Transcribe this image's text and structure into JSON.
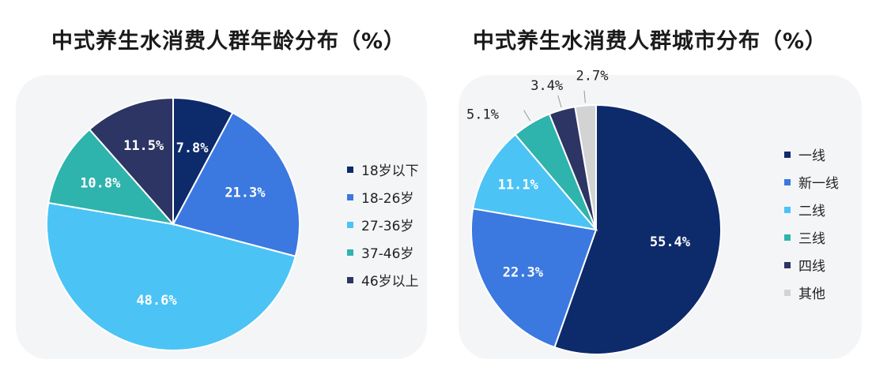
{
  "charts": [
    {
      "title": "中式养生水消费人群年龄分布（%）",
      "legend": [
        "18岁以下",
        "18-26岁",
        "27-36岁",
        "37-46岁",
        "46岁以上"
      ],
      "slice_labels": [
        "7.8%",
        "21.3%",
        "48.6%",
        "10.8%",
        "11.5%"
      ]
    },
    {
      "title": "中式养生水消费人群城市分布（%）",
      "legend": [
        "一线",
        "新一线",
        "二线",
        "三线",
        "四线",
        "其他"
      ],
      "slice_labels": [
        "55.4%",
        "22.3%",
        "11.1%",
        "5.1%",
        "3.4%",
        "2.7%"
      ]
    }
  ],
  "chart_data": [
    {
      "type": "pie",
      "title": "中式养生水消费人群年龄分布（%）",
      "categories": [
        "18岁以下",
        "18-26岁",
        "27-36岁",
        "37-46岁",
        "46岁以上"
      ],
      "values": [
        7.8,
        21.3,
        48.6,
        10.8,
        11.5
      ],
      "colors": [
        "#0d2a6b",
        "#3b78e0",
        "#4cc3f5",
        "#2fb3ad",
        "#2c3563"
      ],
      "legend_position": "right",
      "start": "top",
      "direction": "clockwise"
    },
    {
      "type": "pie",
      "title": "中式养生水消费人群城市分布（%）",
      "categories": [
        "一线",
        "新一线",
        "二线",
        "三线",
        "四线",
        "其他"
      ],
      "values": [
        55.4,
        22.3,
        11.1,
        5.1,
        3.4,
        2.7
      ],
      "colors": [
        "#0d2a6b",
        "#3b78e0",
        "#4cc3f5",
        "#2fb3ad",
        "#2c3563",
        "#d3d3d3"
      ],
      "legend_position": "right",
      "start": "top",
      "direction": "clockwise"
    }
  ]
}
